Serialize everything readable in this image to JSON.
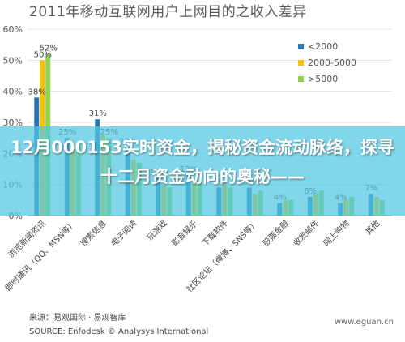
{
  "chart_title": "2011年移动互联网用户上网目的之收入差异",
  "overlay": {
    "headline": "12月000153实时资金，揭秘资金流动脉络，探寻十二月资金动向的奥秘——"
  },
  "source": {
    "line1": "来源：易观国际 · 易观智库",
    "line2": "SOURCE: Enfodesk © Analysys International"
  },
  "watermark": "www.eguan.cn",
  "colors": {
    "series_low": "#2e75b6",
    "series_mid": "#f5c400",
    "series_high": "#92d050"
  },
  "chart_data": {
    "type": "bar",
    "title": "2011年移动互联网用户上网目的之收入差异",
    "y_ticks": [
      "0%",
      "10%",
      "20%",
      "30%",
      "40%",
      "50%",
      "60%"
    ],
    "ylim": [
      0,
      60
    ],
    "grid": true,
    "legend_position": "top-right",
    "categories": [
      "浏览新闻资讯",
      "即时通讯（QQ、MSN等）",
      "搜索信息",
      "电子阅读",
      "玩游戏",
      "影音娱乐",
      "下载软件",
      "社区论坛（微博、SNS等）",
      "股票金融",
      "收发邮件",
      "网上购物",
      "其他"
    ],
    "series": [
      {
        "name": "<2000",
        "color": "#2e75b6",
        "values": [
          38,
          25,
          31,
          22,
          12,
          13,
          9,
          9,
          4,
          6,
          4,
          7
        ]
      },
      {
        "name": "2000-5000",
        "color": "#f5c400",
        "values": [
          50,
          23,
          26,
          18,
          10,
          12,
          10,
          7,
          5,
          7,
          5,
          6
        ]
      },
      {
        "name": ">5000",
        "color": "#92d050",
        "values": [
          52,
          22,
          25,
          17,
          9,
          11,
          9,
          8,
          5,
          8,
          6,
          5
        ]
      }
    ],
    "data_labels": [
      {
        "series": 0,
        "index": 0,
        "text": "38%"
      },
      {
        "series": 1,
        "index": 0,
        "text": "50%"
      },
      {
        "series": 2,
        "index": 0,
        "text": "52%"
      },
      {
        "series": 0,
        "index": 2,
        "text": "31%"
      },
      {
        "series": 2,
        "index": 2,
        "text": "25%"
      },
      {
        "series": 0,
        "index": 1,
        "text": "25%"
      },
      {
        "series": 0,
        "index": 3,
        "text": "22%"
      },
      {
        "series": 0,
        "index": 4,
        "text": "12%"
      },
      {
        "series": 0,
        "index": 5,
        "text": "13%"
      },
      {
        "series": 0,
        "index": 6,
        "text": "9%"
      },
      {
        "series": 0,
        "index": 7,
        "text": "9%"
      },
      {
        "series": 0,
        "index": 8,
        "text": "4%"
      },
      {
        "series": 0,
        "index": 9,
        "text": "6%"
      },
      {
        "series": 0,
        "index": 10,
        "text": "4%"
      },
      {
        "series": 0,
        "index": 11,
        "text": "7%"
      }
    ]
  }
}
